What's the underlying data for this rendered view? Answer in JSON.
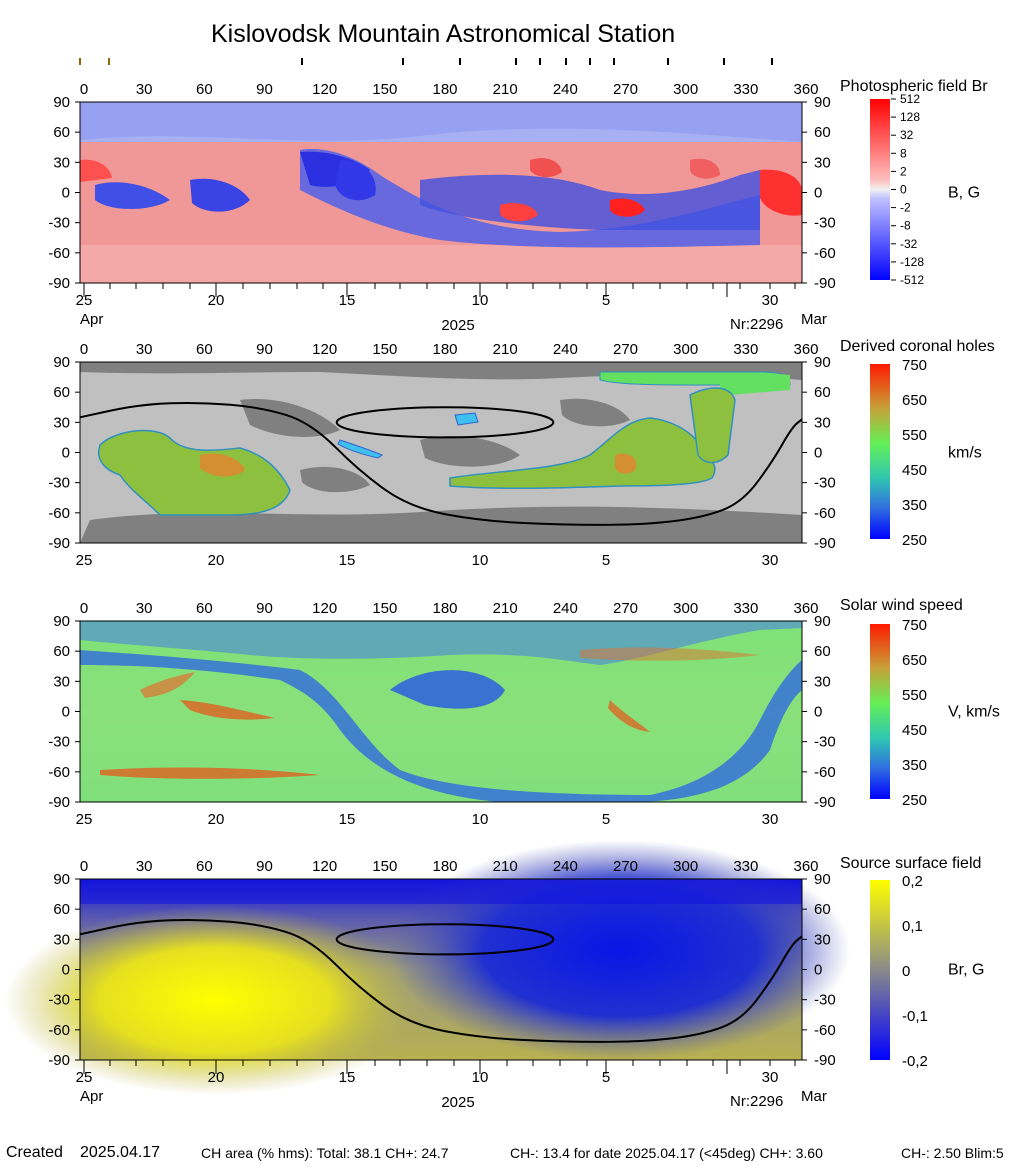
{
  "title": "Kislovodsk Mountain Astronomical Station",
  "carrington_ticks": [
    "0",
    "30",
    "60",
    "90",
    "120",
    "150",
    "180",
    "210",
    "240",
    "270",
    "300",
    "330",
    "360"
  ],
  "lat_ticks": [
    "90",
    "60",
    "30",
    "0",
    "-30",
    "-60",
    "-90"
  ],
  "date_ticks": [
    "25",
    "20",
    "15",
    "10",
    "5",
    "30"
  ],
  "month_left": "Apr",
  "month_right": "Mar",
  "year": "2025",
  "rotation": "Nr:2296",
  "footer": {
    "created_label": "Created",
    "created_date": "2025.04.17",
    "ch_area": "CH area (% hms): Total: 38.1 CH+: 24.7",
    "ch_minus": "CH-: 13.4 for date 2025.04.17 (<45deg) CH+: 3.60",
    "ch_minus2": "CH-: 2.50 Blim:5"
  },
  "chart_data": [
    {
      "type": "heatmap",
      "title": "Photospheric field Br",
      "unit": "B, G",
      "x_range": [
        0,
        360
      ],
      "y_range": [
        -90,
        90
      ],
      "colorbar_ticks": [
        "512",
        "128",
        "32",
        "8",
        "2",
        "0",
        "-2",
        "-8",
        "-32",
        "-128",
        "-512"
      ],
      "colors": {
        "positive": "#ff0000",
        "negative": "#0000ff",
        "zero": "#ffffff"
      }
    },
    {
      "type": "heatmap",
      "title": "Derived coronal holes",
      "unit": "km/s",
      "x_range": [
        0,
        360
      ],
      "y_range": [
        -90,
        90
      ],
      "colorbar_ticks": [
        "750",
        "650",
        "550",
        "450",
        "350",
        "250"
      ],
      "colors": {
        "high": "#ff1a00",
        "mid": "#55ee55",
        "low": "#0000ff",
        "background": "#c0c0c0",
        "shade": "#808080"
      }
    },
    {
      "type": "heatmap",
      "title": "Solar wind speed",
      "unit": "V, km/s",
      "x_range": [
        0,
        360
      ],
      "y_range": [
        -90,
        90
      ],
      "colorbar_ticks": [
        "750",
        "650",
        "550",
        "450",
        "350",
        "250"
      ],
      "colors": {
        "high": "#ff1a00",
        "mid": "#55ee55",
        "low": "#0000ff"
      }
    },
    {
      "type": "heatmap",
      "title": "Source surface field",
      "unit": "Br, G",
      "x_range": [
        0,
        360
      ],
      "y_range": [
        -90,
        90
      ],
      "colorbar_ticks": [
        "0,2",
        "0,1",
        "0",
        "-0,1",
        "-0,2"
      ],
      "colors": {
        "positive": "#ffff00",
        "zero": "#808080",
        "negative": "#0000ff"
      },
      "neutral_line": {
        "lon": [
          0,
          30,
          60,
          90,
          115,
          140,
          165,
          200,
          240,
          280,
          310,
          330,
          345,
          355,
          360
        ],
        "lat": [
          35,
          48,
          50,
          45,
          30,
          -20,
          -55,
          -68,
          -72,
          -72,
          -65,
          -50,
          -10,
          25,
          33
        ]
      },
      "neutral_island": {
        "center_lon": 182,
        "center_lat": 30,
        "half_width_deg": 30,
        "half_height_deg": 15
      }
    }
  ]
}
